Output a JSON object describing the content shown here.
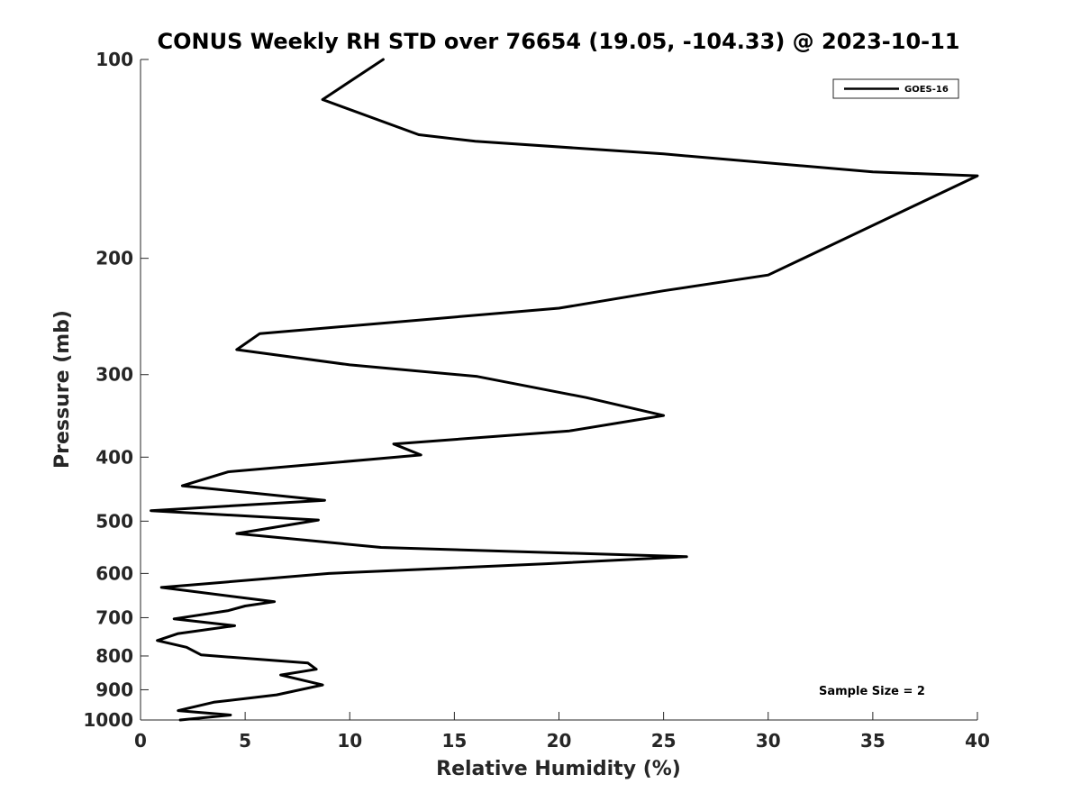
{
  "chart_data": {
    "type": "line",
    "title": "CONUS Weekly RH STD over 76654 (19.05, -104.33) @ 2023-10-11",
    "xlabel": "Relative Humidity (%)",
    "ylabel": "Pressure (mb)",
    "xlim": [
      0,
      40
    ],
    "ylim": [
      1000,
      100
    ],
    "yscale": "log",
    "xticks": [
      "0",
      "5",
      "10",
      "15",
      "20",
      "25",
      "30",
      "35",
      "40"
    ],
    "yticks": [
      "100",
      "200",
      "300",
      "400",
      "500",
      "600",
      "700",
      "800",
      "900",
      "1000"
    ],
    "grid": false,
    "legend_position": "top-right",
    "annotation": "Sample Size = 2",
    "series": [
      {
        "name": "GOES-16",
        "color": "#000000",
        "x": [
          11.6,
          8.7,
          13.3,
          16.0,
          25.0,
          35.0,
          40.0,
          40.0,
          30.0,
          25.0,
          20.0,
          5.7,
          4.6,
          10.0,
          16.1,
          21.3,
          25.0,
          20.5,
          12.1,
          13.4,
          4.2,
          2.0,
          8.8,
          0.5,
          8.5,
          4.6,
          11.5,
          26.1,
          19.4,
          9.0,
          1.0,
          6.4,
          5.0,
          4.2,
          1.6,
          4.5,
          1.8,
          0.8,
          2.2,
          2.9,
          8.0,
          8.4,
          6.7,
          8.7,
          6.5,
          3.5,
          1.8,
          4.3,
          1.9
        ],
        "y": [
          100,
          115,
          130,
          133,
          139,
          148,
          150,
          150,
          212,
          224,
          238,
          260,
          275,
          290,
          302,
          325,
          346,
          365,
          382,
          397,
          421,
          442,
          465,
          482,
          498,
          522,
          548,
          566,
          580,
          600,
          630,
          662,
          672,
          683,
          703,
          720,
          740,
          758,
          776,
          797,
          820,
          838,
          855,
          885,
          916,
          940,
          968,
          983,
          1000
        ]
      }
    ]
  }
}
